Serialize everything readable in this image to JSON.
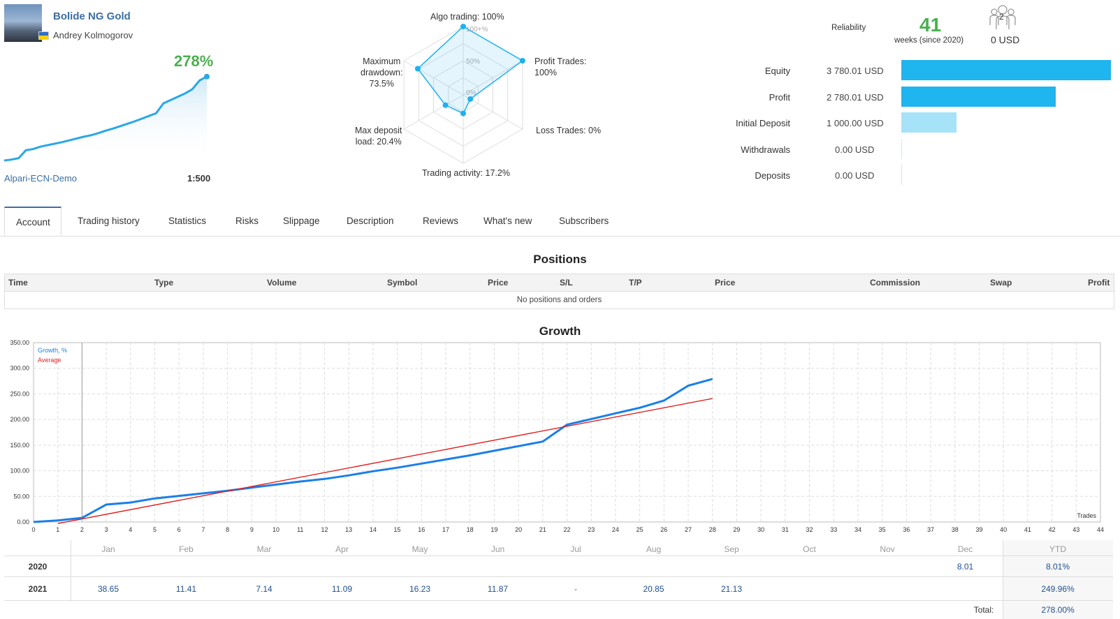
{
  "header": {
    "signal_name": "Bolide NG Gold",
    "author": "Andrey Kolmogorov",
    "growth": "278%",
    "broker": "Alpari-ECN-Demo",
    "leverage": "1:500"
  },
  "radar": {
    "labels": {
      "algo": "Algo trading: 100%",
      "profit_trades": "Profit Trades:\n100%",
      "loss_trades": "Loss Trades: 0%",
      "activity": "Trading activity: 17.2%",
      "deposit_load": "Max deposit\nload: 20.4%",
      "drawdown": "Maximum\ndrawdown:\n73.5%"
    },
    "ring_labels": [
      "100+%",
      "50%",
      "0%"
    ],
    "values": {
      "algo": 100,
      "profit_trades": 100,
      "loss_trades": 0,
      "activity": 17.2,
      "deposit_load": 20.4,
      "drawdown": 73.5
    },
    "color": "#1fb0f0"
  },
  "reliability": {
    "label": "Reliability",
    "weeks": "41",
    "weeks_text": "weeks (since 2020)",
    "subscribers_count": "2",
    "subscribers_funds": "0 USD",
    "icon": "subscribers-icon"
  },
  "equity": {
    "rows": [
      {
        "label": "Equity",
        "value": "3 780.01 USD",
        "amount": 3780.01
      },
      {
        "label": "Profit",
        "value": "2 780.01 USD",
        "amount": 2780.01
      },
      {
        "label": "Initial Deposit",
        "value": "1 000.00 USD",
        "amount": 1000.0
      },
      {
        "label": "Withdrawals",
        "value": "0.00 USD",
        "amount": 0
      },
      {
        "label": "Deposits",
        "value": "0.00 USD",
        "amount": 0
      }
    ],
    "bar_color": "#1fb5ef",
    "bar_color_light": "#a6e2f8"
  },
  "tabs": [
    "Account",
    "Trading history",
    "Statistics",
    "Risks",
    "Slippage",
    "Description",
    "Reviews",
    "What's new",
    "Subscribers"
  ],
  "positions": {
    "title": "Positions",
    "columns": [
      "Time",
      "Type",
      "Volume",
      "Symbol",
      "Price",
      "S/L",
      "T/P",
      "Price",
      "Commission",
      "Swap",
      "Profit"
    ],
    "empty_text": "No positions and orders"
  },
  "growth_chart": {
    "title": "Growth"
  },
  "chart_data": {
    "type": "line",
    "title": "Growth",
    "xlabel": "Trades",
    "ylabel": "",
    "x": [
      0,
      1,
      2,
      3,
      4,
      5,
      6,
      7,
      8,
      9,
      10,
      11,
      12,
      13,
      14,
      15,
      16,
      17,
      18,
      19,
      20,
      21,
      22,
      23,
      24,
      25,
      26,
      27,
      28
    ],
    "series": [
      {
        "name": "Growth, %",
        "color": "#1a7fe8",
        "values": [
          0,
          3,
          8,
          34,
          38,
          46,
          51,
          56,
          61,
          67,
          73,
          79,
          84,
          91,
          99,
          106,
          114,
          122,
          130,
          139,
          148,
          157,
          190,
          201,
          212,
          223,
          237,
          266,
          279
        ]
      },
      {
        "name": "Average",
        "color": "#e02020",
        "x": [
          1,
          28
        ],
        "values": [
          -3,
          241
        ]
      }
    ],
    "xlim": [
      0,
      44
    ],
    "ylim": [
      0,
      350
    ],
    "yticks": [
      "0.00",
      "50.00",
      "100.00",
      "150.00",
      "200.00",
      "250.00",
      "300.00",
      "350.00"
    ],
    "xticks": [
      "0",
      "1",
      "2",
      "3",
      "4",
      "5",
      "6",
      "7",
      "8",
      "9",
      "10",
      "11",
      "12",
      "13",
      "14",
      "15",
      "16",
      "17",
      "18",
      "19",
      "20",
      "21",
      "22",
      "23",
      "24",
      "25",
      "26",
      "27",
      "28",
      "29",
      "30",
      "31",
      "32",
      "33",
      "34",
      "35",
      "36",
      "37",
      "38",
      "39",
      "40",
      "41",
      "42",
      "43",
      "44"
    ],
    "grid": true,
    "legend": "top-left"
  },
  "monthly": {
    "months": [
      "Jan",
      "Feb",
      "Mar",
      "Apr",
      "May",
      "Jun",
      "Jul",
      "Aug",
      "Sep",
      "Oct",
      "Nov",
      "Dec"
    ],
    "ytd_label": "YTD",
    "rows": [
      {
        "year": "2020",
        "values": [
          "",
          "",
          "",
          "",
          "",
          "",
          "",
          "",
          "",
          "",
          "",
          "8.01"
        ],
        "ytd": "8.01%"
      },
      {
        "year": "2021",
        "values": [
          "38.65",
          "11.41",
          "7.14",
          "11.09",
          "16.23",
          "11.87",
          "-",
          "20.85",
          "21.13",
          "",
          "",
          ""
        ],
        "ytd": "249.96%"
      }
    ],
    "total_label": "Total:",
    "total_value": "278.00%"
  },
  "mini_chart": {
    "values": [
      0,
      3,
      8,
      34,
      38,
      46,
      51,
      56,
      61,
      67,
      73,
      79,
      84,
      91,
      99,
      106,
      114,
      122,
      130,
      139,
      148,
      157,
      190,
      201,
      212,
      223,
      237,
      266,
      279
    ],
    "color": "#2aa7e6"
  }
}
